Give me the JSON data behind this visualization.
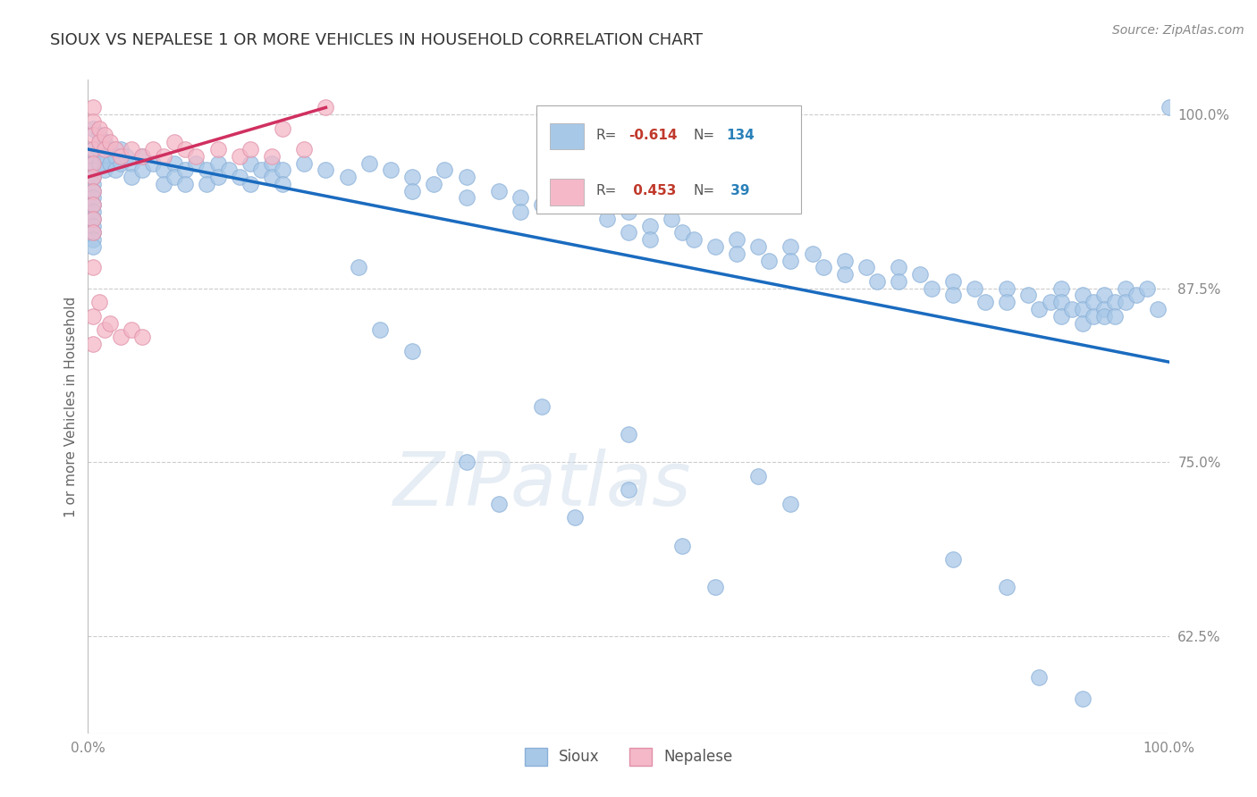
{
  "title": "SIOUX VS NEPALESE 1 OR MORE VEHICLES IN HOUSEHOLD CORRELATION CHART",
  "source_text": "Source: ZipAtlas.com",
  "ylabel": "1 or more Vehicles in Household",
  "xlim": [
    0.0,
    1.0
  ],
  "ylim": [
    0.555,
    1.025
  ],
  "yticks": [
    0.625,
    0.75,
    0.875,
    1.0
  ],
  "ytick_labels": [
    "62.5%",
    "75.0%",
    "87.5%",
    "100.0%"
  ],
  "xtick_labels": [
    "0.0%",
    "100.0%"
  ],
  "sioux_color": "#a8c8e8",
  "nepalese_color": "#f4b8c8",
  "sioux_line_color": "#1a6bbf",
  "nepalese_line_color": "#d03060",
  "background_color": "#ffffff",
  "grid_color": "#cccccc",
  "title_fontsize": 13,
  "watermark_text": "ZIPatlas",
  "sioux_trend": {
    "x_start": 0.0,
    "y_start": 0.975,
    "x_end": 1.0,
    "y_end": 0.822
  },
  "nepalese_trend": {
    "x_start": 0.0,
    "y_start": 0.955,
    "x_end": 0.22,
    "y_end": 1.005
  },
  "sioux_points": [
    [
      0.005,
      0.99
    ],
    [
      0.005,
      0.975
    ],
    [
      0.005,
      0.97
    ],
    [
      0.005,
      0.965
    ],
    [
      0.005,
      0.96
    ],
    [
      0.005,
      0.955
    ],
    [
      0.005,
      0.95
    ],
    [
      0.005,
      0.945
    ],
    [
      0.005,
      0.94
    ],
    [
      0.005,
      0.935
    ],
    [
      0.005,
      0.93
    ],
    [
      0.005,
      0.925
    ],
    [
      0.005,
      0.92
    ],
    [
      0.005,
      0.915
    ],
    [
      0.005,
      0.91
    ],
    [
      0.005,
      0.905
    ],
    [
      0.01,
      0.985
    ],
    [
      0.01,
      0.975
    ],
    [
      0.01,
      0.965
    ],
    [
      0.015,
      0.98
    ],
    [
      0.015,
      0.97
    ],
    [
      0.015,
      0.96
    ],
    [
      0.02,
      0.975
    ],
    [
      0.02,
      0.965
    ],
    [
      0.025,
      0.97
    ],
    [
      0.025,
      0.96
    ],
    [
      0.03,
      0.975
    ],
    [
      0.03,
      0.965
    ],
    [
      0.035,
      0.97
    ],
    [
      0.04,
      0.965
    ],
    [
      0.04,
      0.955
    ],
    [
      0.05,
      0.97
    ],
    [
      0.05,
      0.96
    ],
    [
      0.06,
      0.965
    ],
    [
      0.07,
      0.96
    ],
    [
      0.07,
      0.95
    ],
    [
      0.08,
      0.965
    ],
    [
      0.08,
      0.955
    ],
    [
      0.09,
      0.96
    ],
    [
      0.09,
      0.95
    ],
    [
      0.1,
      0.965
    ],
    [
      0.11,
      0.96
    ],
    [
      0.11,
      0.95
    ],
    [
      0.12,
      0.965
    ],
    [
      0.12,
      0.955
    ],
    [
      0.13,
      0.96
    ],
    [
      0.14,
      0.955
    ],
    [
      0.15,
      0.965
    ],
    [
      0.15,
      0.95
    ],
    [
      0.16,
      0.96
    ],
    [
      0.17,
      0.965
    ],
    [
      0.17,
      0.955
    ],
    [
      0.18,
      0.96
    ],
    [
      0.18,
      0.95
    ],
    [
      0.2,
      0.965
    ],
    [
      0.22,
      0.96
    ],
    [
      0.24,
      0.955
    ],
    [
      0.26,
      0.965
    ],
    [
      0.28,
      0.96
    ],
    [
      0.3,
      0.955
    ],
    [
      0.3,
      0.945
    ],
    [
      0.32,
      0.95
    ],
    [
      0.33,
      0.96
    ],
    [
      0.35,
      0.955
    ],
    [
      0.35,
      0.94
    ],
    [
      0.38,
      0.945
    ],
    [
      0.4,
      0.94
    ],
    [
      0.4,
      0.93
    ],
    [
      0.42,
      0.935
    ],
    [
      0.44,
      0.945
    ],
    [
      0.46,
      0.935
    ],
    [
      0.48,
      0.925
    ],
    [
      0.5,
      0.93
    ],
    [
      0.5,
      0.915
    ],
    [
      0.52,
      0.92
    ],
    [
      0.52,
      0.91
    ],
    [
      0.54,
      0.925
    ],
    [
      0.55,
      0.915
    ],
    [
      0.56,
      0.91
    ],
    [
      0.58,
      0.905
    ],
    [
      0.6,
      0.91
    ],
    [
      0.6,
      0.9
    ],
    [
      0.62,
      0.905
    ],
    [
      0.63,
      0.895
    ],
    [
      0.65,
      0.905
    ],
    [
      0.65,
      0.895
    ],
    [
      0.67,
      0.9
    ],
    [
      0.68,
      0.89
    ],
    [
      0.7,
      0.895
    ],
    [
      0.7,
      0.885
    ],
    [
      0.72,
      0.89
    ],
    [
      0.73,
      0.88
    ],
    [
      0.75,
      0.89
    ],
    [
      0.75,
      0.88
    ],
    [
      0.77,
      0.885
    ],
    [
      0.78,
      0.875
    ],
    [
      0.8,
      0.88
    ],
    [
      0.8,
      0.87
    ],
    [
      0.82,
      0.875
    ],
    [
      0.83,
      0.865
    ],
    [
      0.85,
      0.875
    ],
    [
      0.85,
      0.865
    ],
    [
      0.87,
      0.87
    ],
    [
      0.88,
      0.86
    ],
    [
      0.89,
      0.865
    ],
    [
      0.9,
      0.875
    ],
    [
      0.9,
      0.865
    ],
    [
      0.9,
      0.855
    ],
    [
      0.91,
      0.86
    ],
    [
      0.92,
      0.87
    ],
    [
      0.92,
      0.86
    ],
    [
      0.92,
      0.85
    ],
    [
      0.93,
      0.865
    ],
    [
      0.93,
      0.855
    ],
    [
      0.94,
      0.87
    ],
    [
      0.94,
      0.86
    ],
    [
      0.94,
      0.855
    ],
    [
      0.95,
      0.865
    ],
    [
      0.95,
      0.855
    ],
    [
      0.96,
      0.875
    ],
    [
      0.96,
      0.865
    ],
    [
      0.97,
      0.87
    ],
    [
      0.98,
      0.875
    ],
    [
      0.99,
      0.86
    ],
    [
      1.0,
      1.005
    ],
    [
      0.25,
      0.89
    ],
    [
      0.27,
      0.845
    ],
    [
      0.3,
      0.83
    ],
    [
      0.35,
      0.75
    ],
    [
      0.38,
      0.72
    ],
    [
      0.42,
      0.79
    ],
    [
      0.45,
      0.71
    ],
    [
      0.5,
      0.77
    ],
    [
      0.5,
      0.73
    ],
    [
      0.55,
      0.69
    ],
    [
      0.58,
      0.66
    ],
    [
      0.62,
      0.74
    ],
    [
      0.65,
      0.72
    ],
    [
      0.8,
      0.68
    ],
    [
      0.85,
      0.66
    ],
    [
      0.88,
      0.595
    ],
    [
      0.92,
      0.58
    ]
  ],
  "nepalese_points": [
    [
      0.005,
      1.005
    ],
    [
      0.005,
      0.995
    ],
    [
      0.005,
      0.985
    ],
    [
      0.005,
      0.975
    ],
    [
      0.005,
      0.965
    ],
    [
      0.005,
      0.955
    ],
    [
      0.005,
      0.945
    ],
    [
      0.005,
      0.935
    ],
    [
      0.005,
      0.925
    ],
    [
      0.005,
      0.915
    ],
    [
      0.01,
      0.99
    ],
    [
      0.01,
      0.98
    ],
    [
      0.015,
      0.985
    ],
    [
      0.015,
      0.975
    ],
    [
      0.02,
      0.98
    ],
    [
      0.025,
      0.975
    ],
    [
      0.03,
      0.97
    ],
    [
      0.04,
      0.975
    ],
    [
      0.05,
      0.97
    ],
    [
      0.06,
      0.975
    ],
    [
      0.07,
      0.97
    ],
    [
      0.08,
      0.98
    ],
    [
      0.09,
      0.975
    ],
    [
      0.1,
      0.97
    ],
    [
      0.12,
      0.975
    ],
    [
      0.14,
      0.97
    ],
    [
      0.15,
      0.975
    ],
    [
      0.17,
      0.97
    ],
    [
      0.18,
      0.99
    ],
    [
      0.2,
      0.975
    ],
    [
      0.22,
      1.005
    ],
    [
      0.005,
      0.89
    ],
    [
      0.005,
      0.855
    ],
    [
      0.005,
      0.835
    ],
    [
      0.01,
      0.865
    ],
    [
      0.015,
      0.845
    ],
    [
      0.02,
      0.85
    ],
    [
      0.03,
      0.84
    ],
    [
      0.04,
      0.845
    ],
    [
      0.05,
      0.84
    ]
  ]
}
